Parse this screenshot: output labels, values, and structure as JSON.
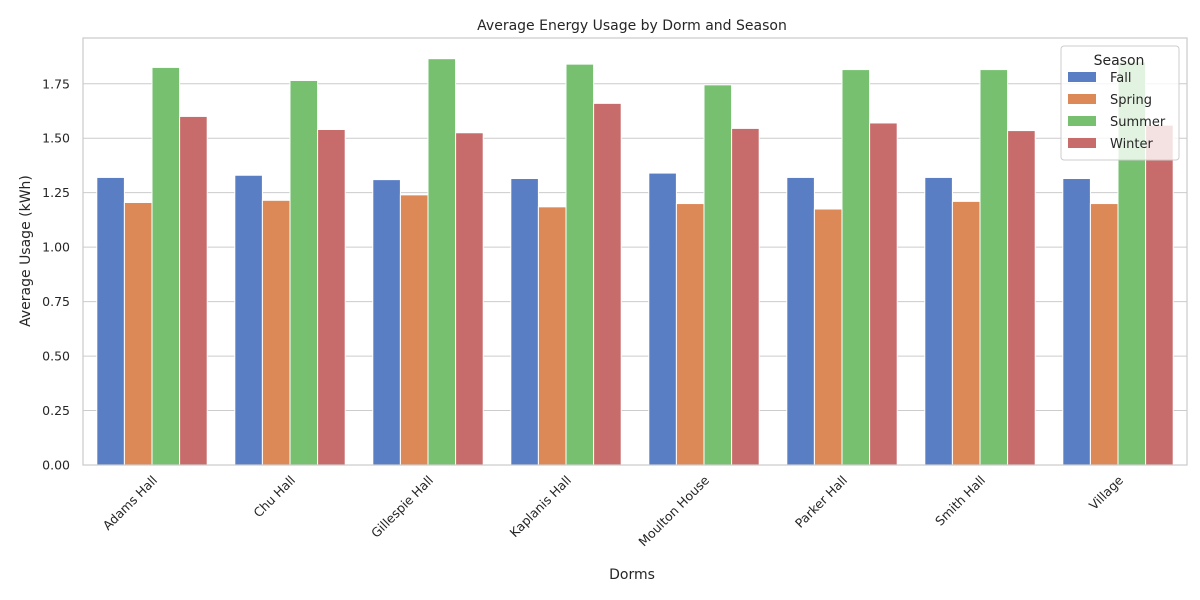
{
  "chart_data": {
    "type": "bar",
    "title": "Average Energy Usage by Dorm and Season",
    "xlabel": "Dorms",
    "ylabel": "Average Usage (kWh)",
    "ylim": [
      0,
      1.96
    ],
    "yticks": [
      "0.00",
      "0.25",
      "0.50",
      "0.75",
      "1.00",
      "1.25",
      "1.50",
      "1.75"
    ],
    "categories": [
      "Adams Hall",
      "Chu Hall",
      "Gillespie Hall",
      "Kaplanis Hall",
      "Moulton House",
      "Parker Hall",
      "Smith Hall",
      "Village"
    ],
    "legend_title": "Season",
    "legend_position": "top-right",
    "grid": "horizontal",
    "series": [
      {
        "name": "Fall",
        "color": "#5a7ec4",
        "values": [
          1.32,
          1.33,
          1.31,
          1.315,
          1.34,
          1.32,
          1.32,
          1.315
        ]
      },
      {
        "name": "Spring",
        "color": "#dd8857",
        "values": [
          1.205,
          1.215,
          1.24,
          1.185,
          1.2,
          1.175,
          1.21,
          1.2
        ]
      },
      {
        "name": "Summer",
        "color": "#76c06f",
        "values": [
          1.825,
          1.765,
          1.865,
          1.84,
          1.745,
          1.815,
          1.815,
          1.85
        ]
      },
      {
        "name": "Winter",
        "color": "#c86b6b",
        "values": [
          1.6,
          1.54,
          1.525,
          1.66,
          1.545,
          1.57,
          1.535,
          1.56
        ]
      }
    ]
  }
}
